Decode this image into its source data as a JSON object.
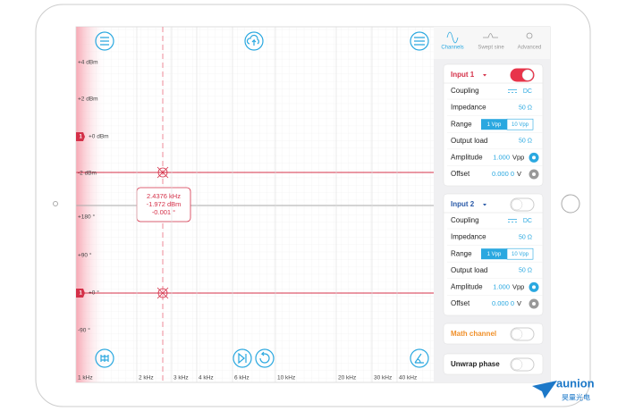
{
  "tabs": [
    "Channels",
    "Swept sine",
    "Advanced"
  ],
  "plot": {
    "amplitude_labels": [
      "+4 dBm",
      "+2 dBm",
      "+0 dBm",
      "-2 dBm"
    ],
    "phase_labels": [
      "+180 °",
      "+90 °",
      "+0 °",
      "-90 °"
    ],
    "frequency_labels": [
      "1 kHz",
      "2 kHz",
      "3 kHz",
      "4 kHz",
      "6 kHz",
      "10 kHz",
      "20 kHz",
      "30 kHz",
      "40 kHz"
    ],
    "cursor": [
      "2.4376 kHz",
      "-1.972 dBm",
      "-0.001 °"
    ],
    "marker": "1"
  },
  "inputs": [
    {
      "title": "Input 1",
      "coupling": {
        "label": "Coupling",
        "value": "DC"
      },
      "impedance": {
        "label": "Impedance",
        "value": "50 Ω"
      },
      "range": {
        "label": "Range",
        "options": [
          "1 Vpp",
          "10 Vpp"
        ]
      },
      "output_load": {
        "label": "Output load",
        "value": "50 Ω"
      },
      "amplitude": {
        "label": "Amplitude",
        "value": "1.000",
        "unit": "Vpp"
      },
      "offset": {
        "label": "Offset",
        "value": "0.000 0",
        "unit": "V"
      }
    },
    {
      "title": "Input 2",
      "coupling": {
        "label": "Coupling",
        "value": "DC"
      },
      "impedance": {
        "label": "Impedance",
        "value": "50 Ω"
      },
      "range": {
        "label": "Range",
        "options": [
          "1 Vpp",
          "10 Vpp"
        ]
      },
      "output_load": {
        "label": "Output load",
        "value": "50 Ω"
      },
      "amplitude": {
        "label": "Amplitude",
        "value": "1.000",
        "unit": "Vpp"
      },
      "offset": {
        "label": "Offset",
        "value": "0.000 0",
        "unit": "V"
      }
    }
  ],
  "math_channel": "Math channel",
  "unwrap_phase": "Unwrap phase",
  "watermark": {
    "brand": "aunion",
    "subtitle": "昊量光电"
  }
}
